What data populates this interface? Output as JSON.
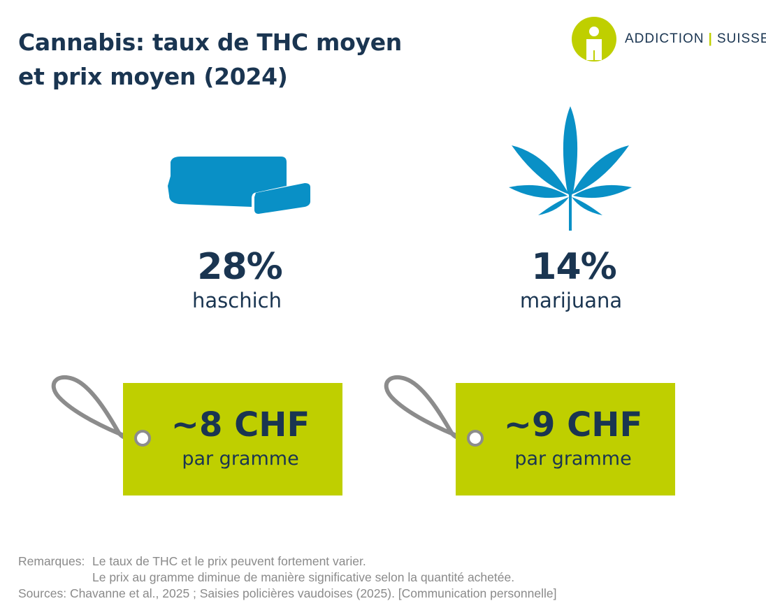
{
  "title": {
    "line1": "Cannabis: taux de THC moyen",
    "line2": "et prix moyen (2024)"
  },
  "logo": {
    "left": "ADDICTION",
    "separator": "|",
    "right": "SUISSE",
    "brand_color": "#bfcf00"
  },
  "items": [
    {
      "icon": "hashish-block-icon",
      "thc": "28%",
      "name": "haschich",
      "price": "~8 CHF",
      "unit": "par gramme"
    },
    {
      "icon": "cannabis-leaf-icon",
      "thc": "14%",
      "name": "marijuana",
      "price": "~9 CHF",
      "unit": "par gramme"
    }
  ],
  "notes": {
    "remarks_label": "Remarques:",
    "remark1": "Le taux de THC et le prix peuvent fortement varier.",
    "remark2": "Le prix au gramme diminue de manière significative selon la quantité achetée.",
    "sources_label": "Sources:",
    "sources": "Chavanne et al., 2025 ; Saisies policières vaudoises (2025). [Communication personnelle]"
  },
  "colors": {
    "navy": "#1a3551",
    "icon_blue": "#0990c6",
    "tag_green": "#bfcf00",
    "string_gray": "#8c8c8c",
    "note_gray": "#8a8a8a"
  }
}
